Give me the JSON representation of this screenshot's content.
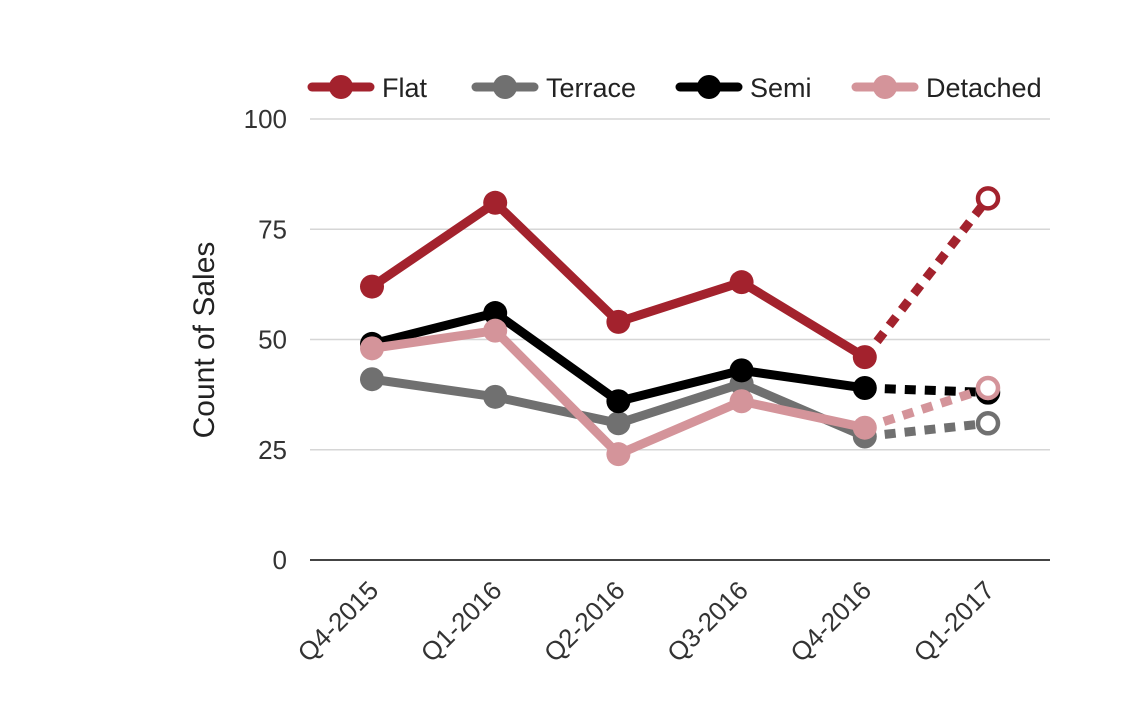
{
  "chart_data": {
    "type": "line",
    "categories": [
      "Q4-2015",
      "Q1-2016",
      "Q2-2016",
      "Q3-2016",
      "Q4-2016",
      "Q1-2017"
    ],
    "ylabel": "Count of Sales",
    "xlabel": "",
    "ylim": [
      0,
      100
    ],
    "yticks": [
      0,
      25,
      50,
      75,
      100
    ],
    "grid": true,
    "legend_position": "top",
    "forecast_from_index": 4,
    "series": [
      {
        "name": "Flat",
        "color": "#a3222d",
        "values": [
          62,
          81,
          54,
          63,
          46,
          82
        ]
      },
      {
        "name": "Terrace",
        "color": "#707070",
        "values": [
          41,
          37,
          31,
          40,
          28,
          31
        ]
      },
      {
        "name": "Semi",
        "color": "#000000",
        "values": [
          49,
          56,
          36,
          43,
          39,
          38
        ]
      },
      {
        "name": "Detached",
        "color": "#d4949a",
        "values": [
          48,
          52,
          24,
          36,
          30,
          39
        ]
      }
    ]
  }
}
